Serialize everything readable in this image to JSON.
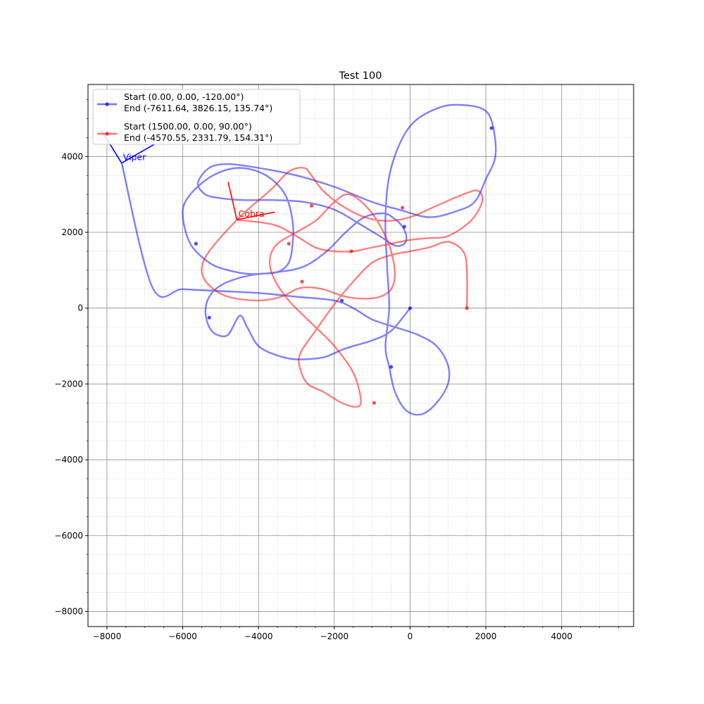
{
  "chart_data": {
    "type": "line",
    "title": "Test 100",
    "xlabel": "",
    "ylabel": "",
    "xlim": [
      -8500,
      5900
    ],
    "ylim": [
      -8400,
      5900
    ],
    "x_ticks": [
      -8000,
      -6000,
      -4000,
      -2000,
      0,
      2000,
      4000
    ],
    "y_ticks": [
      -8000,
      -6000,
      -4000,
      -2000,
      0,
      2000,
      4000
    ],
    "x_tick_labels": [
      "−8000",
      "−6000",
      "−4000",
      "−2000",
      "0",
      "2000",
      "4000"
    ],
    "y_tick_labels": [
      "−8000",
      "−6000",
      "−4000",
      "−2000",
      "0",
      "2000",
      "4000"
    ],
    "grid": true,
    "legend_position": "top-left",
    "series": [
      {
        "name": "Start (0.00, 0.00, -120.00°)\n End  (-7611.64, 3826.15, 135.74°)",
        "legend_lines": [
          "Start (0.00, 0.00, -120.00°)",
          " End  (-7611.64, 3826.15, 135.74°)"
        ],
        "color": "#0000ff",
        "x": [
          0,
          -500,
          -1000,
          -1500,
          -1800,
          -2300,
          -3000,
          -3500,
          -4000,
          -4300,
          -4500,
          -4800,
          -5100,
          -5300,
          -5400,
          -5300,
          -5000,
          -4500,
          -4000,
          -3500,
          -3200,
          -3100,
          -3100,
          -3300,
          -3800,
          -4500,
          -5200,
          -5800,
          -6000,
          -5800,
          -5300,
          -4800,
          -4200,
          -3500,
          -2800,
          -2200,
          -1700,
          -1200,
          -700,
          -400,
          -200,
          -100,
          -150,
          -400,
          -800,
          -1300,
          -2000,
          -2800,
          -3600,
          -4400,
          -5000,
          -5400,
          -5600,
          -5300,
          -4800,
          -4000,
          -3000,
          -2000,
          -1000,
          -300,
          500,
          1200,
          1700,
          2000,
          2250,
          2200,
          2000,
          1500,
          800,
          0,
          -500,
          -650,
          -600,
          -550,
          -650,
          -550,
          -400,
          -100,
          300,
          700,
          1000,
          1000,
          700,
          200,
          -400,
          -1000,
          -1500,
          -2000,
          -3000,
          -4000,
          -5000,
          -6000,
          -6800,
          -7611.64
        ],
        "y": [
          0,
          -600,
          -850,
          -1000,
          -1100,
          -1300,
          -1350,
          -1250,
          -1000,
          -500,
          -200,
          -700,
          -700,
          -500,
          -100,
          300,
          600,
          800,
          900,
          950,
          1200,
          1700,
          2300,
          3000,
          3500,
          3700,
          3500,
          3000,
          2500,
          1700,
          1200,
          1000,
          900,
          950,
          1100,
          1500,
          2000,
          2400,
          2500,
          2350,
          2150,
          1900,
          1700,
          1650,
          1900,
          2200,
          2600,
          2800,
          2850,
          2850,
          2900,
          3000,
          3300,
          3700,
          3800,
          3700,
          3500,
          3200,
          2800,
          2600,
          2400,
          2550,
          2800,
          3400,
          4000,
          4750,
          5200,
          5350,
          5300,
          4800,
          3700,
          2400,
          1000,
          0,
          -1000,
          -1550,
          -2200,
          -2700,
          -2800,
          -2500,
          -2000,
          -1500,
          -1000,
          -700,
          -500,
          -300,
          0,
          200,
          300,
          400,
          450,
          500,
          550,
          3826.15
        ],
        "marker_x": [
          0,
          -500,
          -1800,
          -5300,
          -5650,
          -150,
          2150
        ],
        "marker_y": [
          0,
          -1550,
          200,
          -250,
          1700,
          2150,
          4750
        ],
        "end_heading_deg": 135.74,
        "label": "Viper"
      },
      {
        "name": "Start (1500.00, 0.00, 90.00°)\n End  (-4570.55, 2331.79, 154.31°)",
        "legend_lines": [
          "Start (1500.00, 0.00, 90.00°)",
          " End  (-4570.55, 2331.79, 154.31°)"
        ],
        "color": "#ff0000",
        "x": [
          1500,
          1500,
          1400,
          1000,
          500,
          0,
          -500,
          -1000,
          -1500,
          -2000,
          -2500,
          -2900,
          -2900,
          -2700,
          -2300,
          -1800,
          -1400,
          -1300,
          -1500,
          -2000,
          -2600,
          -3200,
          -3600,
          -3700,
          -3500,
          -3000,
          -2500,
          -2200,
          -2000,
          -1700,
          -1400,
          -1000,
          -700,
          -500,
          -400,
          -500,
          -800,
          -1200,
          -1700,
          -2000,
          -2300,
          -2700,
          -3000,
          -3400,
          -4000,
          -4800,
          -5300,
          -5500,
          -5300,
          -4500,
          -3700,
          -3200,
          -2800,
          -2600,
          -2300,
          -1800,
          -1200,
          -600,
          0,
          700,
          1400,
          1800,
          1900,
          1600,
          1000,
          500,
          0,
          -500,
          -1000,
          -1500,
          -2000,
          -2500,
          -3000,
          -3600,
          -4570.55
        ],
        "y": [
          0,
          1000,
          1500,
          1750,
          1600,
          1500,
          1400,
          1200,
          700,
          100,
          -600,
          -1200,
          -1600,
          -2000,
          -2200,
          -2500,
          -2600,
          -2400,
          -1700,
          -1000,
          -400,
          200,
          800,
          1300,
          1700,
          2000,
          2300,
          2600,
          2800,
          3000,
          2900,
          2500,
          2000,
          1500,
          900,
          500,
          300,
          250,
          300,
          400,
          500,
          550,
          500,
          300,
          200,
          300,
          600,
          1000,
          1500,
          2400,
          3100,
          3600,
          3700,
          3500,
          3100,
          2700,
          2400,
          2300,
          2400,
          2700,
          3000,
          3100,
          2800,
          2300,
          1900,
          1850,
          1800,
          1700,
          1600,
          1500,
          1500,
          1600,
          1900,
          2200,
          2331.79
        ],
        "marker_x": [
          1500,
          -950,
          -1550,
          -2850,
          -3200,
          -2600,
          -200
        ],
        "marker_y": [
          0,
          -2500,
          1500,
          700,
          1700,
          2700,
          2650
        ],
        "end_heading_deg": 154.31,
        "label": "Cobra"
      }
    ]
  }
}
